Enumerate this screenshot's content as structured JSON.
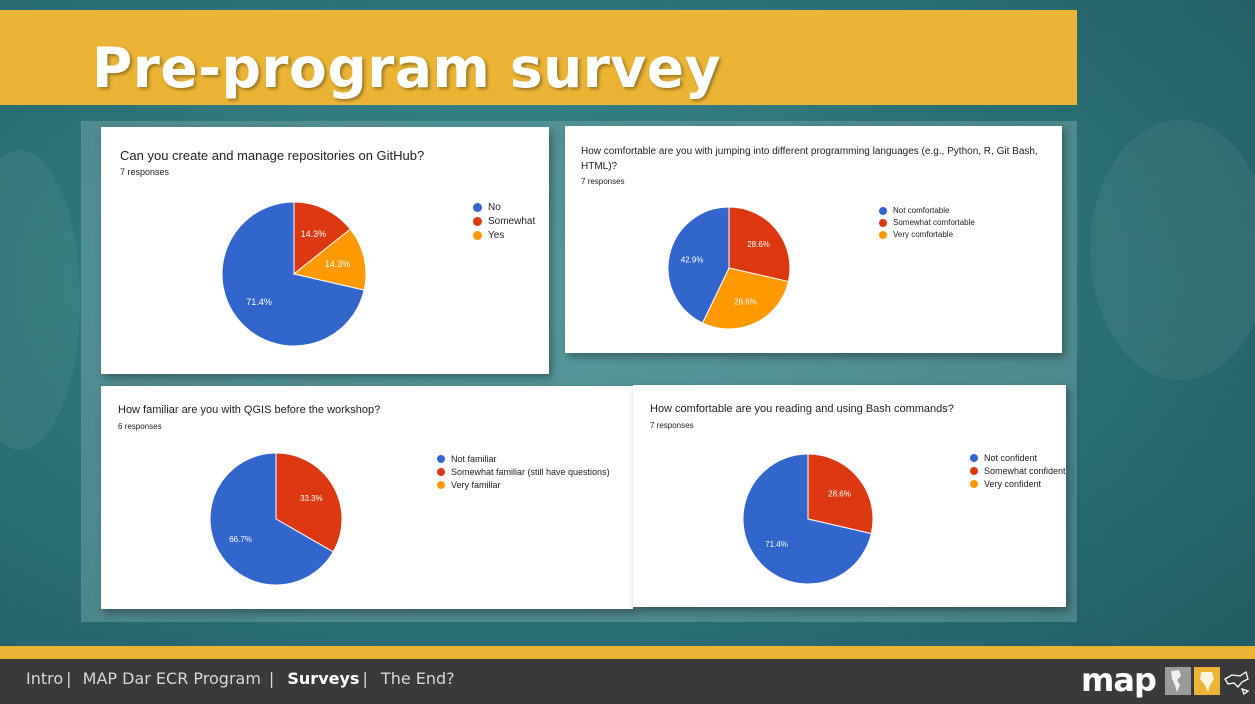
{
  "slide": {
    "title": "Pre-program survey"
  },
  "colors": {
    "blue": "#3366cc",
    "red": "#dc3912",
    "orange": "#ff9900",
    "gold": "#ebb434"
  },
  "cards": [
    {
      "question": "Can you create and manage repositories on GitHub?",
      "responses": "7 responses",
      "legend": [
        "No",
        "Somewhat",
        "Yes"
      ],
      "chart_data": {
        "type": "pie",
        "categories": [
          "No",
          "Somewhat",
          "Yes"
        ],
        "values": [
          71.4,
          14.3,
          14.3
        ],
        "labels": [
          "71.4%",
          "14.3%",
          "14.3%"
        ]
      }
    },
    {
      "question": "How comfortable are you with jumping into different programming languages (e.g., Python, R, Git Bash, HTML)?",
      "responses": "7 responses",
      "legend": [
        "Not comfortable",
        "Somewhat comfortable",
        "Very comfortable"
      ],
      "chart_data": {
        "type": "pie",
        "categories": [
          "Not comfortable",
          "Somewhat comfortable",
          "Very comfortable"
        ],
        "values": [
          42.9,
          28.6,
          28.6
        ],
        "labels": [
          "42.9%",
          "28.6%",
          "28.6%"
        ]
      }
    },
    {
      "question": "How familiar are you with QGIS before the workshop?",
      "responses": "6 responses",
      "legend": [
        "Not familiar",
        "Somewhat familiar (still have questions)",
        "Very familiar"
      ],
      "chart_data": {
        "type": "pie",
        "categories": [
          "Not familiar",
          "Somewhat familiar (still have questions)",
          "Very familiar"
        ],
        "values": [
          66.7,
          33.3,
          0
        ],
        "labels": [
          "66.7%",
          "33.3%",
          ""
        ]
      }
    },
    {
      "question": "How comfortable are you reading and using Bash commands?",
      "responses": "7 responses",
      "legend": [
        "Not confident",
        "Somewhat confident",
        "Very confident"
      ],
      "chart_data": {
        "type": "pie",
        "categories": [
          "Not confident",
          "Somewhat confident",
          "Very confident"
        ],
        "values": [
          71.4,
          28.6,
          0
        ],
        "labels": [
          "71.4%",
          "28.6%",
          ""
        ]
      }
    }
  ],
  "footer": {
    "nav": [
      "Intro",
      "MAP Dar ECR Program",
      "Surveys",
      "The End?"
    ],
    "separator": "|",
    "active": "Surveys",
    "logo": "map"
  }
}
